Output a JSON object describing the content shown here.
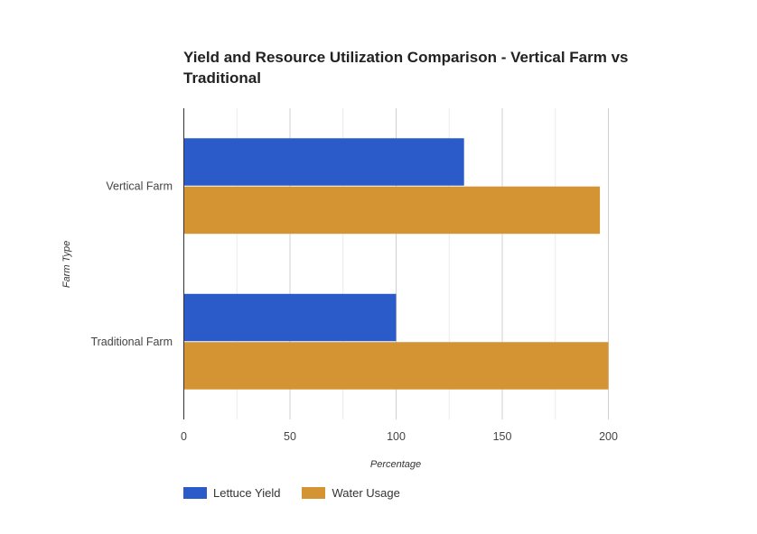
{
  "chart_data": {
    "type": "bar",
    "orientation": "horizontal",
    "title": "Yield and Resource Utilization Comparison - Vertical Farm vs Traditional",
    "xlabel": "Percentage",
    "ylabel": "Farm Type",
    "categories": [
      "Vertical Farm",
      "Traditional Farm"
    ],
    "series": [
      {
        "name": "Lettuce Yield",
        "color": "#2a5bc9",
        "values": [
          132,
          100
        ]
      },
      {
        "name": "Water Usage",
        "color": "#d49434",
        "values": [
          196,
          200
        ]
      }
    ],
    "xlim": [
      0,
      200
    ],
    "xticks": [
      "0",
      "50",
      "100",
      "150",
      "200"
    ],
    "grid": true,
    "legend_position": "bottom-left"
  }
}
